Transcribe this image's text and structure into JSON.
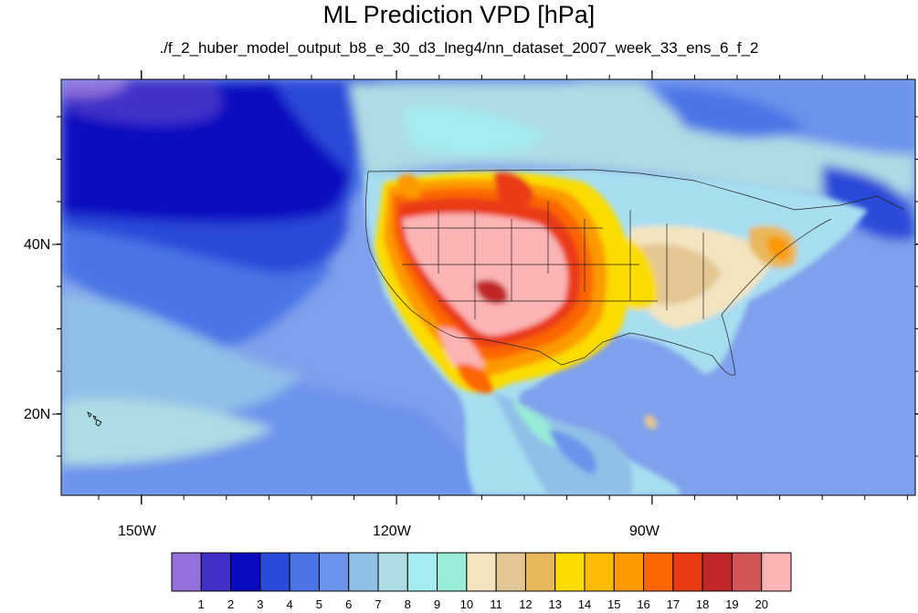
{
  "title": "ML Prediction VPD [hPa]",
  "subtitle": "./f_2_huber_model_output_b8_e_30_d3_lneg4/nn_dataset_2007_week_33_ens_6_f_2",
  "lat_labels": [
    "40N",
    "20N"
  ],
  "lon_labels": [
    "150W",
    "120W",
    "90W"
  ],
  "colorbar": {
    "ticks": [
      "1",
      "2",
      "3",
      "4",
      "5",
      "6",
      "7",
      "8",
      "9",
      "10",
      "11",
      "12",
      "13",
      "14",
      "15",
      "16",
      "17",
      "18",
      "19",
      "20"
    ],
    "colors": [
      "#9370db",
      "#4030c8",
      "#0a0ac0",
      "#2a4ad8",
      "#4b75e6",
      "#6c93ec",
      "#90bfe8",
      "#aedce4",
      "#a3ecf0",
      "#98ecd8",
      "#f4e4c0",
      "#e4c694",
      "#e8b85a",
      "#fbdc00",
      "#fcba00",
      "#fc9a00",
      "#fc6600",
      "#ea3a14",
      "#c02828",
      "#d25656",
      "#fcb4b4"
    ]
  },
  "map": {
    "ocean_color": "#7fa0ec",
    "land_color": "#a7def0"
  }
}
